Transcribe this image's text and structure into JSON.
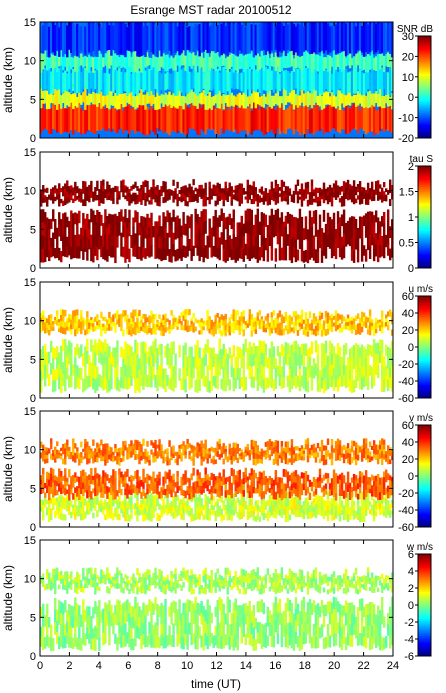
{
  "chart_data": {
    "type": "heatmap",
    "title": "Esrange MST radar 20100512",
    "xlabel": "time (UT)",
    "xlim": [
      0,
      24
    ],
    "xticks": [
      "0",
      "2",
      "4",
      "6",
      "8",
      "10",
      "12",
      "14",
      "16",
      "18",
      "20",
      "22",
      "24"
    ],
    "panels": [
      {
        "name": "snr",
        "ylabel": "altitude (km)",
        "ylim": [
          0,
          15
        ],
        "yticks": [
          "0",
          "5",
          "10",
          "15"
        ],
        "colorbar_label": "SNR dB",
        "clim": [
          -20,
          30
        ],
        "colorbar_ticks": [
          "-20",
          "-10",
          "0",
          "10",
          "20",
          "30"
        ],
        "layers": [
          {
            "alt_min": 0.9,
            "alt_max": 4.2,
            "value": 22
          },
          {
            "alt_min": 4.2,
            "alt_max": 6.0,
            "value": 10
          },
          {
            "alt_min": 6.0,
            "alt_max": 9.0,
            "value": -2
          },
          {
            "alt_min": 9.0,
            "alt_max": 11.0,
            "value": 2
          },
          {
            "alt_min": 11.0,
            "alt_max": 15.0,
            "value": -12
          }
        ]
      },
      {
        "name": "tau",
        "ylabel": "altitude (km)",
        "ylim": [
          0,
          15
        ],
        "yticks": [
          "0",
          "5",
          "10",
          "15"
        ],
        "colorbar_label": "tau S",
        "clim": [
          0,
          2
        ],
        "colorbar_ticks": [
          "0",
          "0.5",
          "1",
          "1.5",
          "2"
        ],
        "layers": [
          {
            "alt_min": 1.2,
            "alt_max": 7.0,
            "value": 2.0
          },
          {
            "alt_min": 8.5,
            "alt_max": 10.8,
            "value": 2.0
          }
        ]
      },
      {
        "name": "u",
        "ylabel": "altitude (km)",
        "ylim": [
          0,
          15
        ],
        "yticks": [
          "0",
          "5",
          "10",
          "15"
        ],
        "colorbar_label": "u m/s",
        "clim": [
          -60,
          60
        ],
        "colorbar_ticks": [
          "-60",
          "-40",
          "-20",
          "0",
          "20",
          "40",
          "60"
        ],
        "layers": [
          {
            "alt_min": 1.2,
            "alt_max": 7.0,
            "value": 8
          },
          {
            "alt_min": 8.5,
            "alt_max": 10.8,
            "value": 22
          }
        ]
      },
      {
        "name": "v",
        "ylabel": "altitude (km)",
        "ylim": [
          0,
          15
        ],
        "yticks": [
          "0",
          "5",
          "10",
          "15"
        ],
        "colorbar_label": "v m/s",
        "clim": [
          -60,
          60
        ],
        "colorbar_ticks": [
          "-60",
          "-40",
          "-20",
          "0",
          "20",
          "40",
          "60"
        ],
        "layers": [
          {
            "alt_min": 1.2,
            "alt_max": 4.0,
            "value": 10
          },
          {
            "alt_min": 4.0,
            "alt_max": 7.0,
            "value": 34
          },
          {
            "alt_min": 8.5,
            "alt_max": 10.8,
            "value": 30
          }
        ]
      },
      {
        "name": "w",
        "ylabel": "altitude (km)",
        "ylim": [
          0,
          15
        ],
        "yticks": [
          "0",
          "5",
          "10",
          "15"
        ],
        "colorbar_label": "w m/s",
        "clim": [
          -6,
          6
        ],
        "colorbar_ticks": [
          "-6",
          "-4",
          "-2",
          "0",
          "2",
          "4",
          "6"
        ],
        "layers": [
          {
            "alt_min": 1.2,
            "alt_max": 7.0,
            "value": 0.3
          },
          {
            "alt_min": 8.5,
            "alt_max": 10.8,
            "value": 0.5
          }
        ]
      }
    ]
  }
}
